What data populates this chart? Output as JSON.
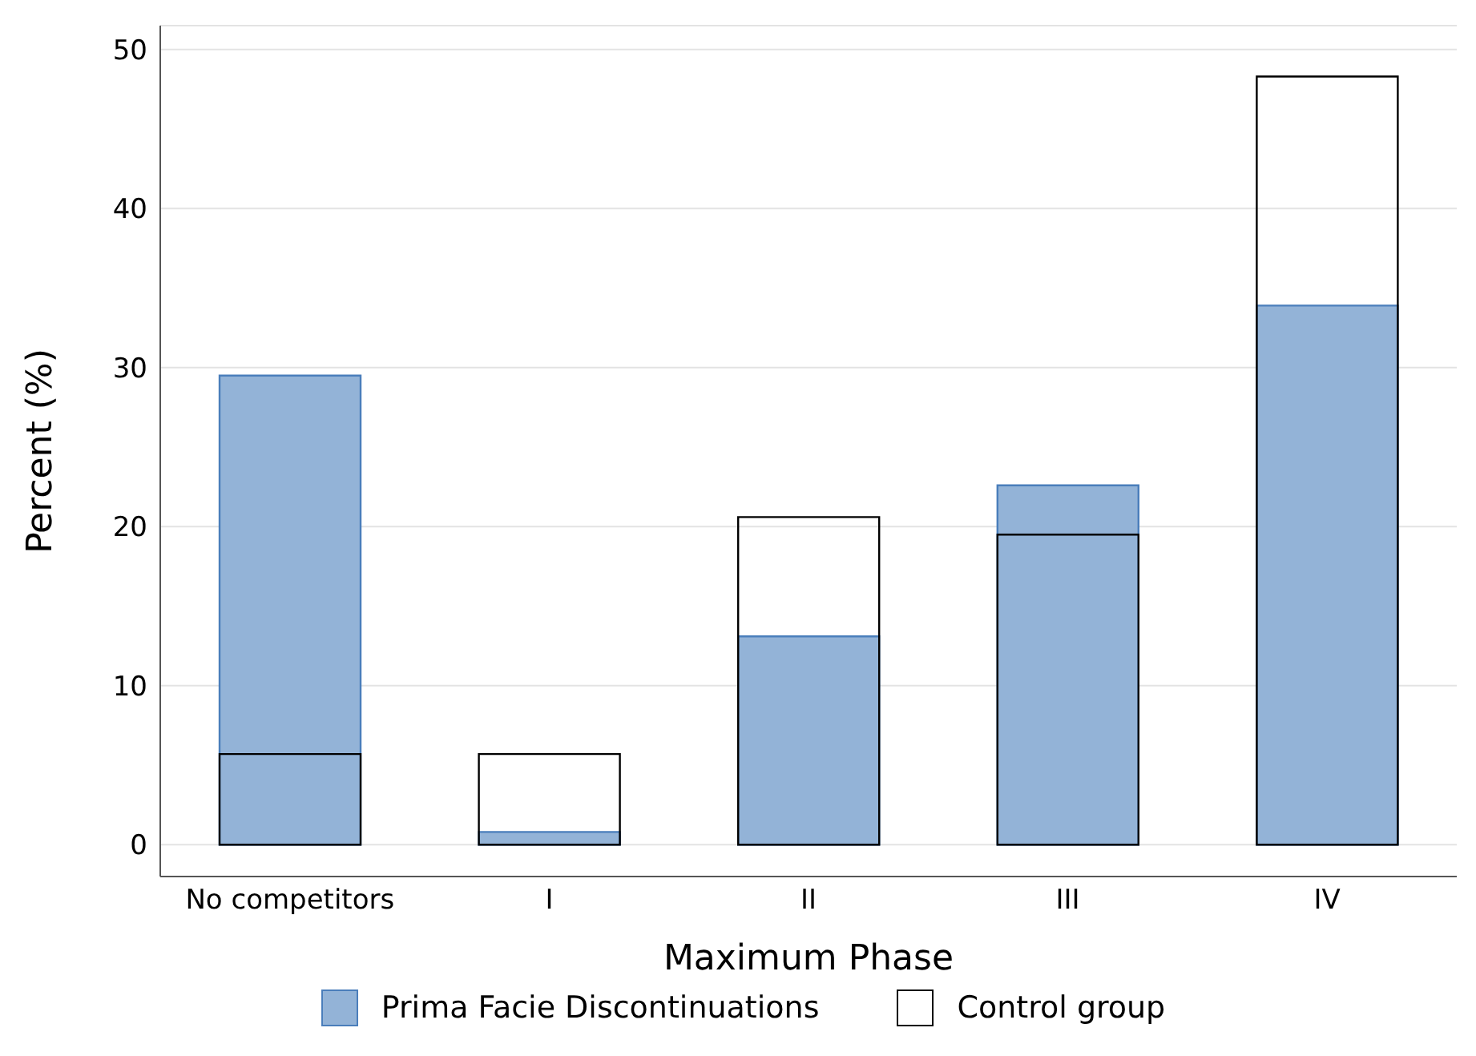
{
  "chart_data": {
    "type": "bar",
    "xlabel": "Maximum Phase",
    "ylabel": "Percent (%)",
    "categories": [
      "No competitors",
      "I",
      "II",
      "III",
      "IV"
    ],
    "series": [
      {
        "name": "Prima Facie Discontinuations",
        "color": "#93b3d7",
        "values": [
          29.5,
          0.8,
          13.1,
          22.6,
          33.9
        ]
      },
      {
        "name": "Control group",
        "color": "#000000",
        "values": [
          5.7,
          5.7,
          20.6,
          19.5,
          48.3
        ]
      }
    ],
    "ylim": [
      -2,
      51.5
    ],
    "yticks": [
      0,
      10,
      20,
      30,
      40,
      50
    ],
    "grid": "y",
    "legend": "bottom"
  }
}
